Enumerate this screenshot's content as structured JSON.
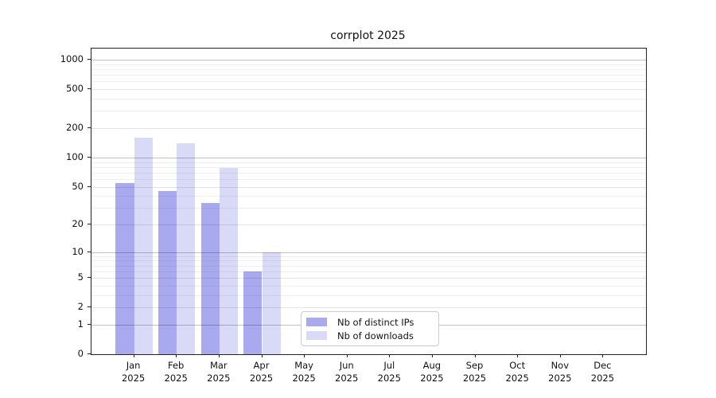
{
  "title": "corrplot 2025",
  "chart_data": {
    "type": "bar",
    "title": "corrplot 2025",
    "categories": [
      "Jan",
      "Feb",
      "Mar",
      "Apr",
      "May",
      "Jun",
      "Jul",
      "Aug",
      "Sep",
      "Oct",
      "Nov",
      "Dec"
    ],
    "year": "2025",
    "series": [
      {
        "name": "Nb of distinct IPs",
        "color": "#a9a9f0",
        "values": [
          54,
          45,
          34,
          6,
          0,
          0,
          0,
          0,
          0,
          0,
          0,
          0
        ]
      },
      {
        "name": "Nb of downloads",
        "color": "#d9d9f8",
        "values": [
          160,
          140,
          78,
          10,
          0,
          0,
          0,
          0,
          0,
          0,
          0,
          0
        ]
      }
    ],
    "y_scale": "log10(1+v)",
    "y_ticks": [
      0,
      1,
      2,
      5,
      10,
      20,
      50,
      100,
      200,
      500,
      1000
    ],
    "y_minor_ticks": [
      3,
      4,
      6,
      7,
      8,
      9,
      30,
      40,
      60,
      70,
      80,
      90,
      300,
      400,
      600,
      700,
      800,
      900
    ],
    "y_decade_ticks": [
      1,
      10,
      100,
      1000
    ],
    "ylim": [
      0,
      1280
    ],
    "grid": true,
    "legend_position": "inside-bottom-center"
  }
}
